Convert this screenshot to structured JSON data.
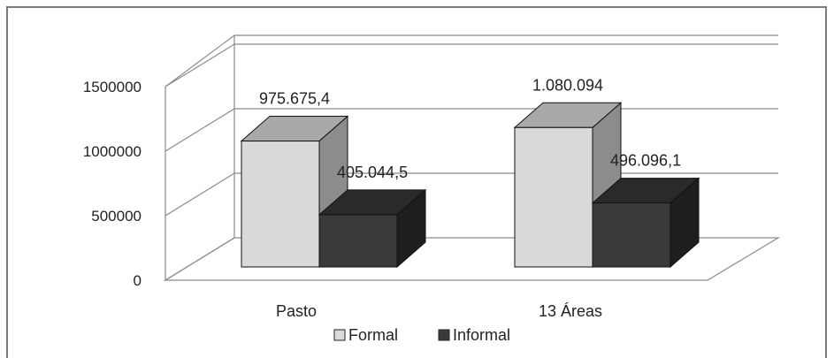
{
  "chart_data": {
    "type": "bar",
    "categories": [
      "Pasto",
      "13 Áreas"
    ],
    "series": [
      {
        "name": "Formal",
        "values": [
          975675.4,
          1080094
        ],
        "labels": [
          "975.675,4",
          "1.080.094"
        ],
        "color": "#d9d9d9"
      },
      {
        "name": "Informal",
        "values": [
          405044.5,
          496096.1
        ],
        "labels": [
          "405.044,5",
          "496.096,1"
        ],
        "color": "#3a3a3a"
      }
    ],
    "yticks": [
      0,
      500000,
      1000000,
      1500000
    ],
    "ylim": [
      0,
      1500000
    ],
    "grid": true,
    "legend": "bottom",
    "style": "3d-clustered-column"
  }
}
